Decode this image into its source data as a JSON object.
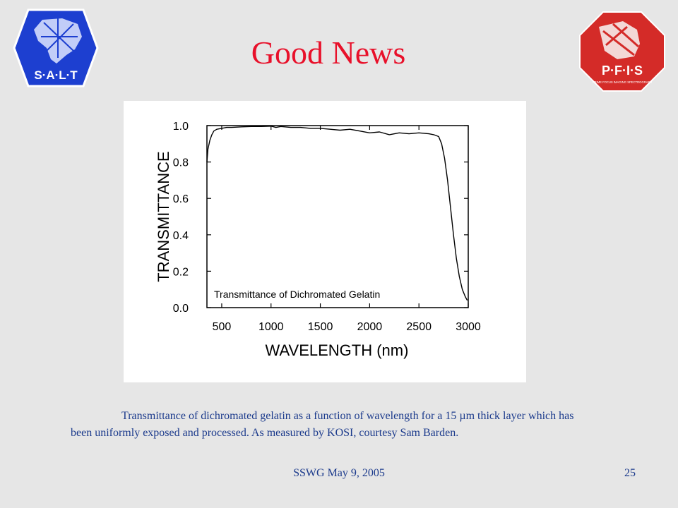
{
  "slide": {
    "title": "Good News",
    "caption_line1": "Transmittance of dichromated gelatin as a function of wavelength for a 15 µm thick layer which has",
    "caption_line2": "been uniformly exposed and processed.  As measured by KOSI, courtesy Sam Barden.",
    "footer_left": "SSWG  May 9, 2005",
    "footer_right": "25",
    "title_color": "#e8102a",
    "text_color": "#1b3a8c"
  },
  "logos": {
    "left": {
      "text": "S·A·L·T",
      "color": "#1d3fd0",
      "icon": "salt-telescope-logo"
    },
    "right": {
      "text": "P·F·I·S",
      "subtext": "PRIME FOCUS IMAGING SPECTROGRAPH",
      "color": "#d42b28",
      "icon": "pfis-logo"
    }
  },
  "chart_data": {
    "type": "line",
    "title": "Transmittance of Dichromated Gelatin",
    "xlabel": "WAVELENGTH (nm)",
    "ylabel": "TRANSMITTANCE",
    "xlim": [
      350,
      3000
    ],
    "ylim": [
      0.0,
      1.0
    ],
    "x_ticks": [
      500,
      1000,
      1500,
      2000,
      2500,
      3000
    ],
    "y_ticks": [
      "0.0",
      "0.2",
      "0.4",
      "0.6",
      "0.8",
      "1.0"
    ],
    "grid": false,
    "series": [
      {
        "x": [
          350,
          360,
          380,
          400,
          420,
          450,
          500,
          550,
          600,
          700,
          800,
          900,
          1000,
          1050,
          1100,
          1200,
          1300,
          1400,
          1500,
          1600,
          1700,
          1800,
          1900,
          2000,
          2100,
          2200,
          2300,
          2400,
          2500,
          2600,
          2650,
          2700,
          2730,
          2760,
          2790,
          2820,
          2850,
          2880,
          2910,
          2940,
          2970,
          2990
        ],
        "y": [
          0.8,
          0.87,
          0.92,
          0.95,
          0.97,
          0.98,
          0.985,
          0.99,
          0.99,
          0.993,
          0.995,
          0.995,
          0.997,
          0.99,
          0.995,
          0.99,
          0.99,
          0.985,
          0.985,
          0.98,
          0.975,
          0.98,
          0.97,
          0.96,
          0.965,
          0.95,
          0.96,
          0.955,
          0.96,
          0.955,
          0.95,
          0.94,
          0.9,
          0.82,
          0.7,
          0.55,
          0.4,
          0.27,
          0.17,
          0.1,
          0.06,
          0.04
        ]
      }
    ]
  }
}
